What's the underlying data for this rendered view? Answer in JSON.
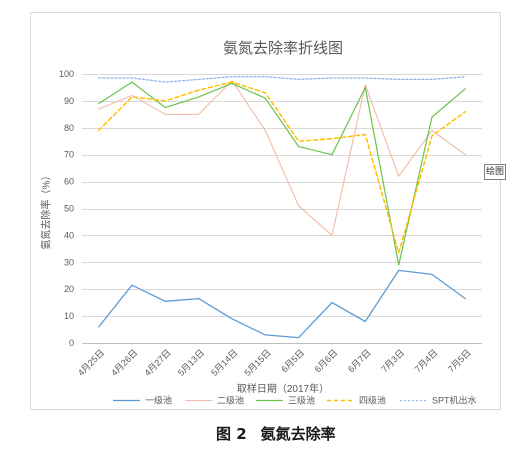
{
  "chart_data": {
    "type": "line",
    "title": "氨氮去除率折线图",
    "xlabel": "取样日期（2017年）",
    "ylabel": "氨氮去除率（%）",
    "ylim": [
      0,
      100
    ],
    "yticks": [
      0,
      10,
      20,
      30,
      40,
      50,
      60,
      70,
      80,
      90,
      100
    ],
    "grid": true,
    "legend_position": "bottom",
    "categories": [
      "4月25日",
      "4月26日",
      "4月27日",
      "5月13日",
      "5月14日",
      "5月15日",
      "6月5日",
      "6月6日",
      "6月7日",
      "7月3日",
      "7月4日",
      "7月5日"
    ],
    "series": [
      {
        "name": "一级池",
        "color": "#5b9bd5",
        "style": "solid",
        "values": [
          6,
          21.5,
          15.5,
          16.5,
          9,
          3,
          2,
          15,
          8,
          27,
          25.5,
          16.5
        ]
      },
      {
        "name": "二级池",
        "color": "#f2bba8",
        "style": "solid",
        "values": [
          87,
          92,
          85,
          85,
          97.5,
          79,
          51,
          40,
          96,
          62,
          79,
          70
        ]
      },
      {
        "name": "三级池",
        "color": "#6cc24a",
        "style": "solid",
        "values": [
          89,
          97,
          87.5,
          91.5,
          96.5,
          91,
          73,
          70,
          95,
          29,
          84,
          94.5
        ]
      },
      {
        "name": "四级池",
        "color": "#ffc000",
        "style": "dashed",
        "values": [
          79,
          91.5,
          90,
          94,
          97,
          93,
          75,
          76,
          77.5,
          33.5,
          77,
          86
        ]
      },
      {
        "name": "SPT机出水",
        "color": "#8fb8e6",
        "style": "dotted",
        "values": [
          98.5,
          98.5,
          97,
          98,
          99,
          99,
          98,
          98.5,
          98.5,
          98,
          98,
          99
        ]
      }
    ]
  },
  "figure_caption": {
    "label": "图 2",
    "title": "氨氮去除率"
  },
  "tooltip": {
    "text": "绘图"
  }
}
